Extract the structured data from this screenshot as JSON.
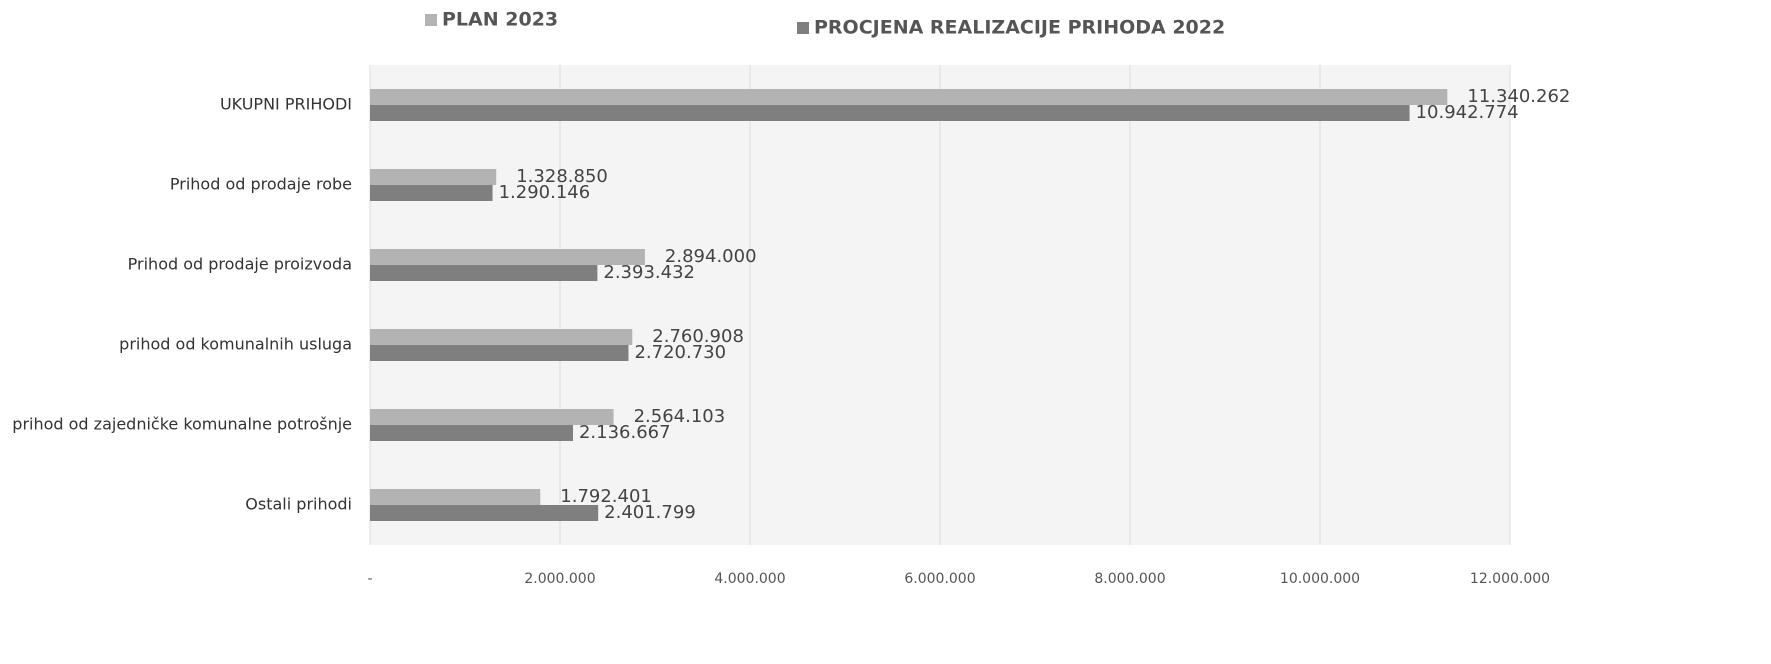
{
  "chart_data": {
    "type": "hbar",
    "categories": [
      "UKUPNI  PRIHODI",
      "Prihod od prodaje robe",
      "Prihod od prodaje proizvoda",
      "prihod od komunalnih usluga",
      "prihod od zajedničke komunalne potrošnje",
      "Ostali prihodi"
    ],
    "series": [
      {
        "name": "PLAN 2023",
        "color": "#b3b3b3",
        "values": [
          11340262,
          1328850,
          2894000,
          2760908,
          2564103,
          1792401
        ],
        "value_labels": [
          "11.340.262",
          "1.328.850",
          "2.894.000",
          "2.760.908",
          "2.564.103",
          "1.792.401"
        ]
      },
      {
        "name": "PROCJENA REALIZACIJE PRIHODA  2022",
        "color": "#7f7f7f",
        "values": [
          10942774,
          1290146,
          2393432,
          2720730,
          2136667,
          2401799
        ],
        "value_labels": [
          "10.942.774",
          "1.290.146",
          "2.393.432",
          "2.720.730",
          "2.136.667",
          "2.401.799"
        ]
      }
    ],
    "xlim": [
      0,
      12000000
    ],
    "xticks": [
      {
        "value": 0,
        "label": "-"
      },
      {
        "value": 2000000,
        "label": "2.000.000"
      },
      {
        "value": 4000000,
        "label": "4.000.000"
      },
      {
        "value": 6000000,
        "label": "6.000.000"
      },
      {
        "value": 8000000,
        "label": "8.000.000"
      },
      {
        "value": 10000000,
        "label": "10.000.000"
      },
      {
        "value": 12000000,
        "label": "12.000.000"
      }
    ],
    "grid": true
  }
}
